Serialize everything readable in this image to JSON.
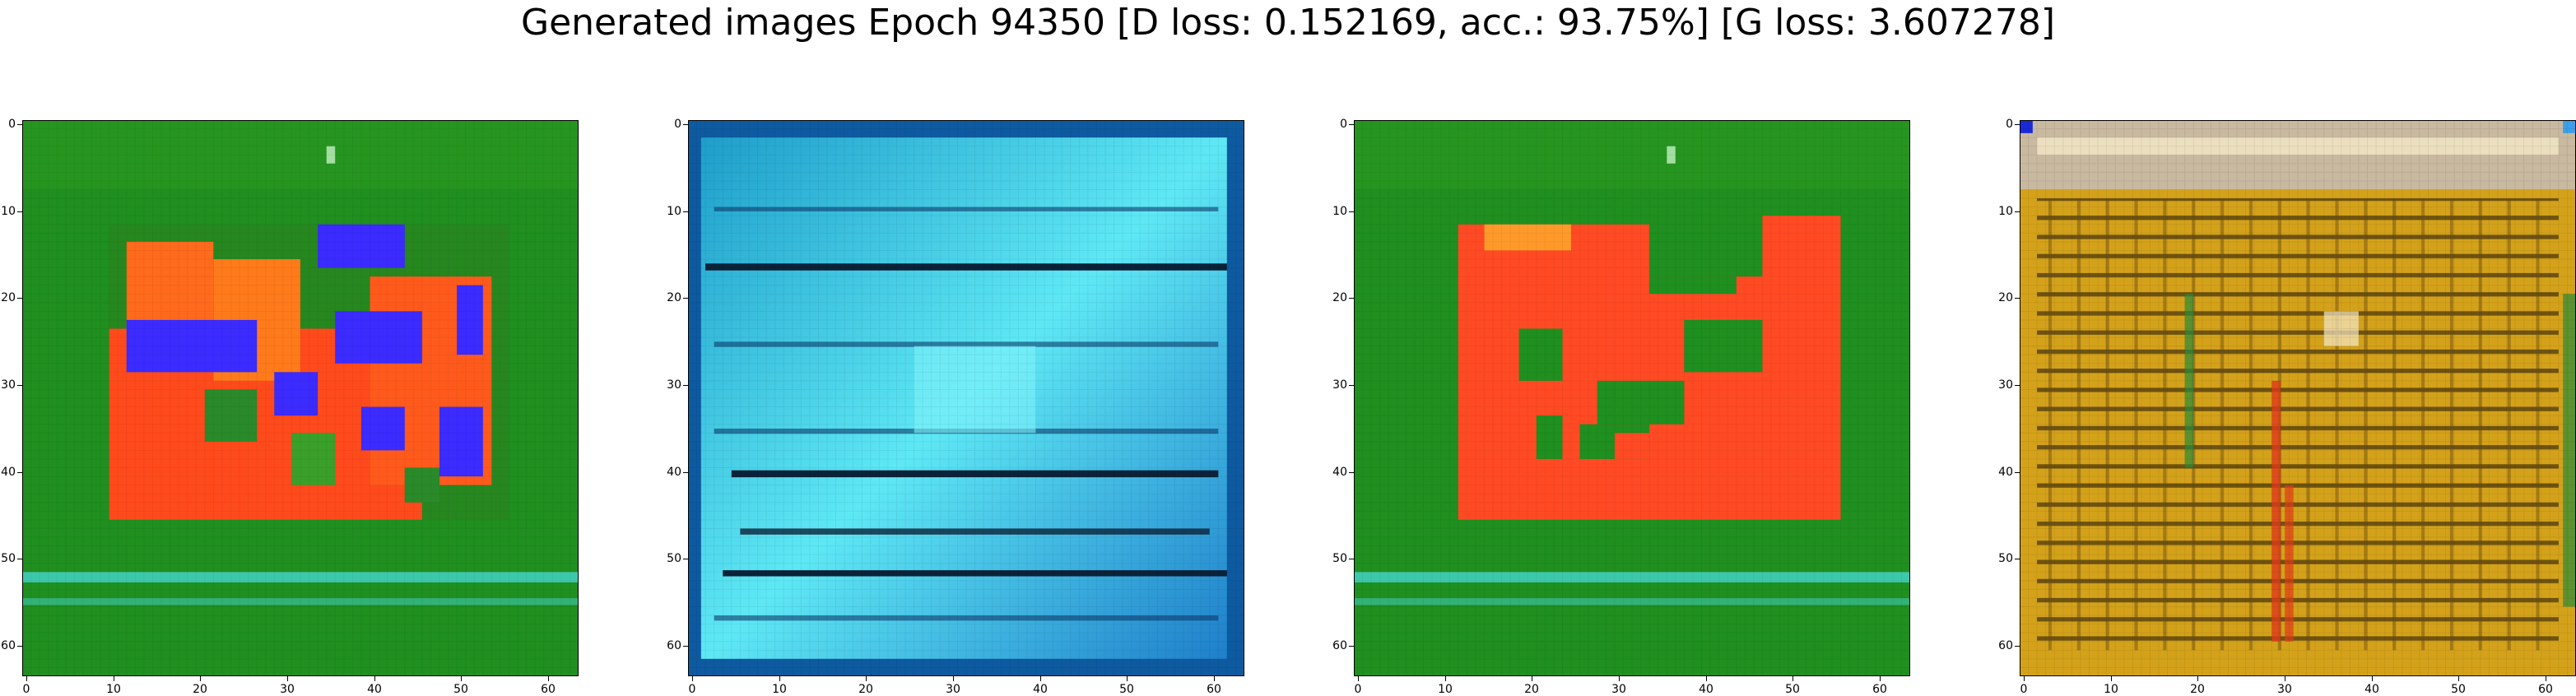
{
  "figure": {
    "title": "Generated images Epoch 94350 [D loss: 0.152169, acc.: 93.75%] [G loss: 3.607278]"
  },
  "axis_ticks": {
    "x": [
      "0",
      "10",
      "20",
      "30",
      "40",
      "50",
      "60"
    ],
    "y": [
      "0",
      "10",
      "20",
      "30",
      "40",
      "50",
      "60"
    ]
  },
  "panels": [
    {
      "id": "sample-1",
      "palette": {
        "background": "#1f8f1f",
        "accent_red": "#ff4a1c",
        "accent_blue": "#3b2bff",
        "accent_orange": "#ff7a1a",
        "accent_cyan": "#45d6d0"
      }
    },
    {
      "id": "sample-2",
      "palette": {
        "background": "#2ec4e0",
        "accent_dark": "#0b2238",
        "accent_light": "#6fe8f2",
        "accent_blue": "#1a78c8"
      }
    },
    {
      "id": "sample-3",
      "palette": {
        "background": "#1f8f1f",
        "accent_red": "#ff4a24",
        "accent_orange": "#ff9a2a",
        "accent_cyan": "#45d6d0"
      }
    },
    {
      "id": "sample-4",
      "palette": {
        "background": "#d4a21a",
        "accent_dark": "#1a1208",
        "accent_light": "#f5e8c8",
        "accent_red": "#e03a1a",
        "accent_green": "#2a8a3a"
      }
    }
  ]
}
